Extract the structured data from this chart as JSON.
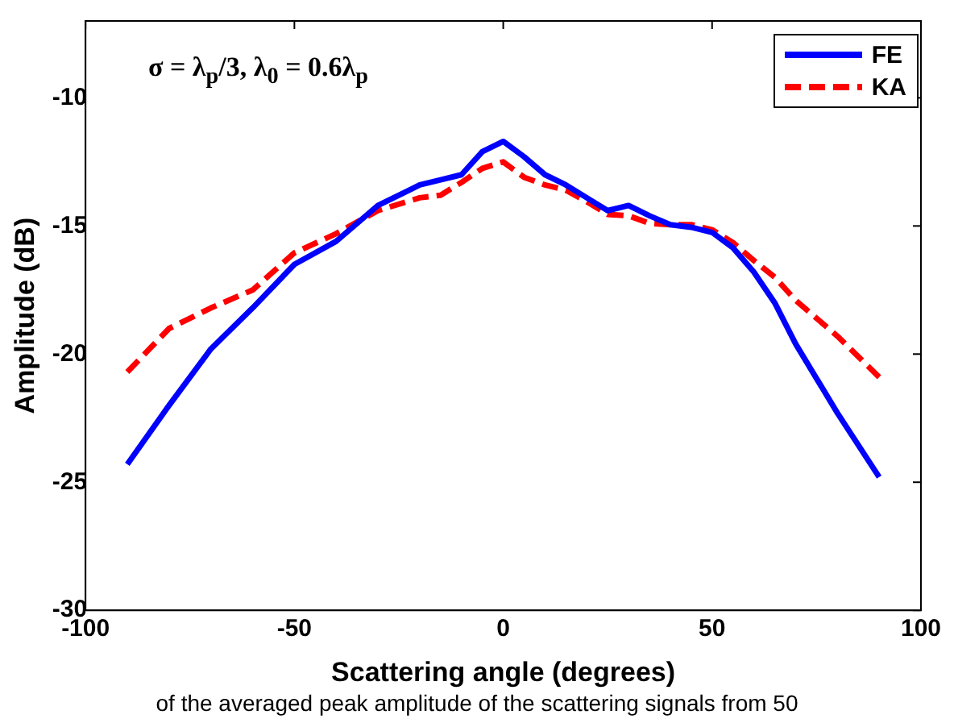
{
  "chart_data": {
    "type": "line",
    "xlabel": "Scattering angle (degrees)",
    "ylabel": "Amplitude (dB)",
    "annotations": [
      "σ = λ$_{p}$/3, λ$_{0}$ = 0.6λ$_{p}$",
      "of the averaged peak amplitude of the scattering signals from 50"
    ],
    "x": [
      -90,
      -80,
      -70,
      -60,
      -50,
      -40,
      -30,
      -20,
      -15,
      -10,
      -5,
      0,
      5,
      10,
      15,
      20,
      25,
      30,
      35,
      40,
      45,
      50,
      55,
      60,
      65,
      70,
      80,
      90
    ],
    "series": [
      {
        "name": "FE",
        "color": "#0000ff",
        "line_style": "solid",
        "values": [
          -24.3,
          -22.0,
          -19.8,
          -18.2,
          -16.5,
          -15.6,
          -14.2,
          -13.4,
          -13.2,
          -13.0,
          -12.1,
          -11.7,
          -12.3,
          -13.0,
          -13.4,
          -13.9,
          -14.4,
          -14.2,
          -14.6,
          -14.95,
          -15.05,
          -15.25,
          -15.85,
          -16.8,
          -18.0,
          -19.6,
          -22.3,
          -24.8
        ]
      },
      {
        "name": "KA",
        "color": "#ff0000",
        "line_style": "dashed",
        "values": [
          -20.7,
          -19.0,
          -18.2,
          -17.5,
          -16.05,
          -15.3,
          -14.4,
          -13.9,
          -13.8,
          -13.3,
          -12.75,
          -12.5,
          -13.1,
          -13.4,
          -13.6,
          -14.05,
          -14.55,
          -14.6,
          -14.9,
          -14.95,
          -14.95,
          -15.15,
          -15.65,
          -16.35,
          -17.0,
          -17.9,
          -19.3,
          -20.9
        ]
      }
    ],
    "xlim": [
      -100,
      100
    ],
    "xticks": [
      -100,
      -50,
      0,
      50,
      100
    ],
    "ylim": [
      -30,
      -7
    ],
    "yticks": [
      -30,
      -25,
      -20,
      -15,
      -10
    ],
    "grid": false,
    "legend": "top right",
    "marker": "none"
  }
}
